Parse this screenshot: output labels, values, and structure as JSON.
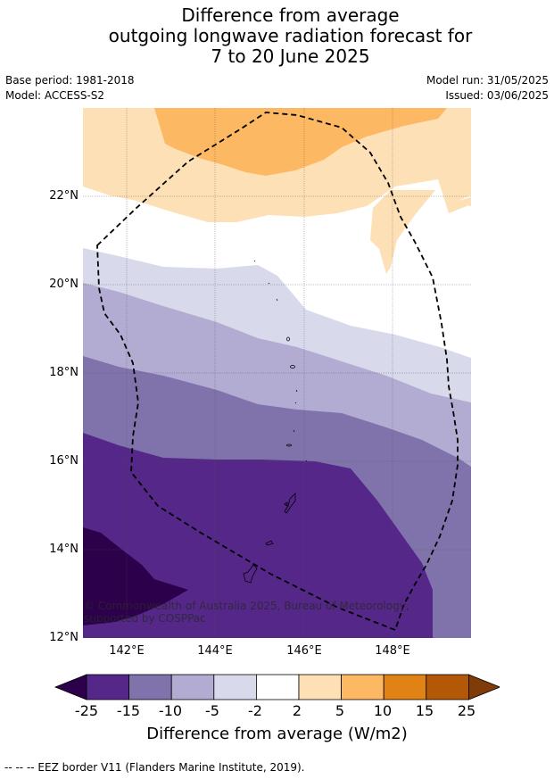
{
  "title": {
    "line1": "Difference from average",
    "line2": "outgoing longwave radiation forecast for",
    "line3": "7 to 20 June 2025"
  },
  "meta": {
    "base_period": "Base period: 1981-2018",
    "model": "Model: ACCESS-S2",
    "model_run": "Model run: 31/05/2025",
    "issued": "Issued: 03/06/2025"
  },
  "axes": {
    "lat_labels": [
      "22°N",
      "20°N",
      "18°N",
      "16°N",
      "14°N",
      "12°N"
    ],
    "lon_labels": [
      "142°E",
      "144°E",
      "146°E",
      "148°E"
    ]
  },
  "copyright": "© Commonwealth of Australia 2025, Bureau of Meteorology, supported by COSPPac",
  "colorbar": {
    "tick_labels": [
      "-25",
      "-15",
      "-10",
      "-5",
      "-2",
      "2",
      "5",
      "10",
      "15",
      "25"
    ],
    "colors": [
      "#2d004b",
      "#542788",
      "#8073ac",
      "#b2abd2",
      "#d8daeb",
      "#ffffff",
      "#fee0b6",
      "#fdb863",
      "#e08214",
      "#b35806",
      "#7f3b08"
    ],
    "title": "Difference from average (W/m2)"
  },
  "footnote": "--  --  -- EEZ border V11 (Flanders Marine Institute, 2019)."
}
